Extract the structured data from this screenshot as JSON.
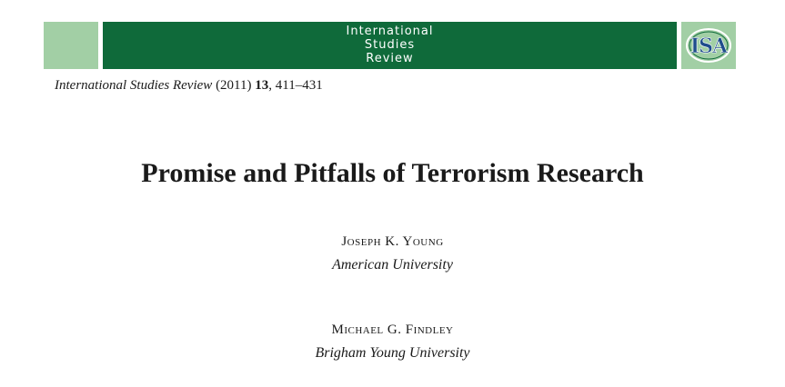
{
  "header": {
    "journal_line1": "International",
    "journal_line2": "Studies",
    "journal_line3": "Review",
    "logo_text": "ISA",
    "colors": {
      "banner_dark": "#0f6a3a",
      "banner_light": "#a2cfa5"
    }
  },
  "citation": {
    "journal": "International Studies Review",
    "year": "(2011)",
    "volume": "13",
    "pages": ", 411–431"
  },
  "article": {
    "title": "Promise and Pitfalls of Terrorism Research"
  },
  "authors": [
    {
      "name": "Joseph K. Young",
      "affiliation": "American University"
    },
    {
      "name": "Michael G. Findley",
      "affiliation": "Brigham Young University"
    }
  ]
}
